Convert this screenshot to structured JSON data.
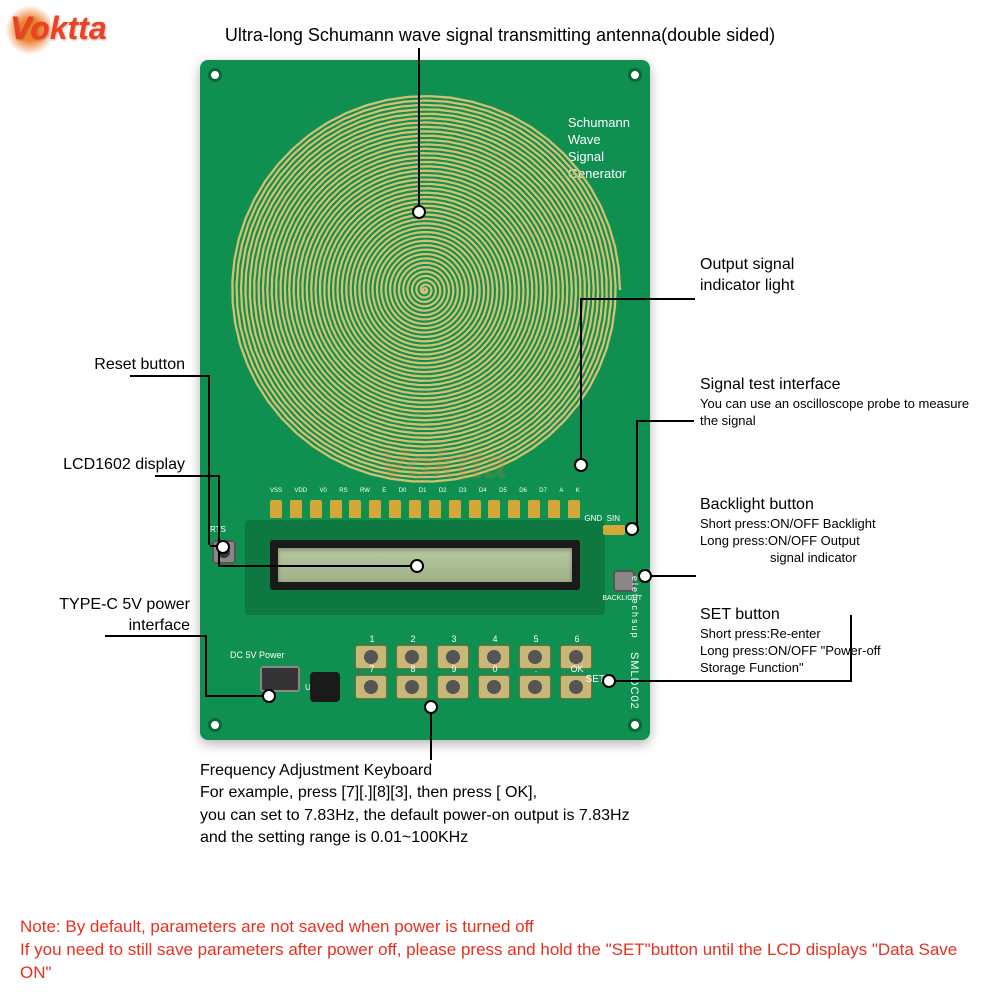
{
  "logo": "Voktta",
  "title": "Ultra-long Schumann wave signal transmitting antenna(double sided)",
  "pcb": {
    "label_lines": [
      "Schumann",
      "Wave",
      "Signal",
      "Generator"
    ],
    "reset": "RTS",
    "power_label": "DC 5V Power",
    "usb": "USB1",
    "backlight": "BACKLIGHT",
    "gnd": "GND",
    "sin": "SIN",
    "set": "SET",
    "side1": "eletechsup",
    "side2": "SMLDC02",
    "pin_labels": [
      "VSS",
      "VDD",
      "V0",
      "RS",
      "RW",
      "E",
      "D0",
      "D1",
      "D2",
      "D3",
      "D4",
      "D5",
      "D6",
      "D7",
      "A",
      "K"
    ],
    "key_row1": [
      "1",
      "2",
      "3",
      "4",
      "5",
      "6"
    ],
    "key_row2": [
      "7",
      "8",
      "9",
      "0",
      ".",
      "OK"
    ]
  },
  "callouts": {
    "output": {
      "title": "Output signal",
      "title2": "indicator light"
    },
    "reset": {
      "title": "Reset button"
    },
    "signal": {
      "title": "Signal test interface",
      "sub": "You can use an oscilloscope probe to measure the signal"
    },
    "lcd": {
      "title": "LCD1602 display"
    },
    "backlight": {
      "title": "Backlight button",
      "sub1": "Short press:ON/OFF Backlight",
      "sub2": "Long press:ON/OFF Output",
      "sub3": "signal indicator"
    },
    "typec": {
      "title": "TYPE-C 5V power",
      "title2": "interface"
    },
    "setbtn": {
      "title": "SET button",
      "sub1": "Short press:Re-enter",
      "sub2": "Long press:ON/OFF \"Power-off",
      "sub3": "Storage Function\""
    },
    "freq": {
      "title": "Frequency Adjustment Keyboard",
      "l1": "For example, press [7][.][8][3], then press [ OK],",
      "l2": "you can set to 7.83Hz, the default power-on output is 7.83Hz",
      "l3": "and the setting range is 0.01~100KHz"
    }
  },
  "note": "Note: By default, parameters are not saved when power is turned off\nIf you need to still save parameters after power off, please press and hold the \"SET\"button until the LCD displays \"Data Save ON\"",
  "colors": {
    "pcb": "#109050",
    "accent": "#f04020",
    "gold": "#c8b878"
  }
}
